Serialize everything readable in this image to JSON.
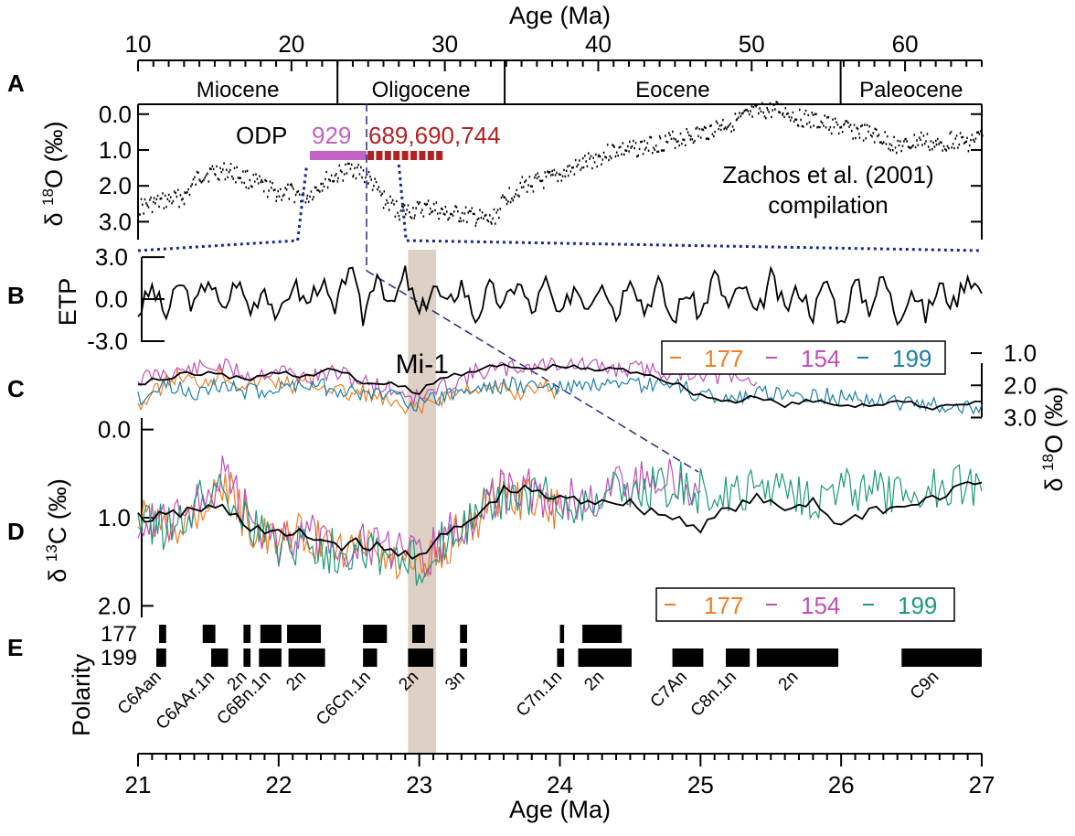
{
  "chart_data": [
    {
      "panel": "A",
      "type": "scatter",
      "top_axis": {
        "title": "Age (Ma)",
        "range": [
          10,
          65
        ],
        "ticks": [
          10,
          20,
          30,
          40,
          50,
          60
        ]
      },
      "ylabel_base": "δ",
      "ylabel_sup": "18",
      "ylabel_rest": "O (‰)",
      "y_range": [
        -0.3,
        3.5
      ],
      "y_inverted": true,
      "yticks": [
        "0.0",
        "1.0",
        "2.0",
        "3.0"
      ],
      "epochs": [
        {
          "name": "Miocene",
          "start": 10,
          "end": 23
        },
        {
          "name": "Oligocene",
          "start": 23,
          "end": 33.9
        },
        {
          "name": "Eocene",
          "start": 33.9,
          "end": 55.8
        },
        {
          "name": "Paleocene",
          "start": 55.8,
          "end": 65
        }
      ],
      "odp_label": "ODP",
      "site_label_929": "929",
      "site_label_south": "689,690,744",
      "site_colors": {
        "929": "#c262c2",
        "south": "#b22222"
      },
      "site_bar_929": [
        21.2,
        24.9
      ],
      "site_bar_south": [
        24.9,
        29.5
      ],
      "annotation_line1": "Zachos et al. (2001)",
      "annotation_line2": "compilation",
      "zoom_window": [
        21,
        27
      ],
      "series": [
        {
          "x": [
            10,
            11,
            12,
            13,
            14,
            15,
            16,
            17,
            18,
            19,
            20,
            21,
            22,
            23,
            24,
            25,
            26,
            27,
            28,
            29,
            30,
            31,
            32,
            33,
            34,
            35,
            36,
            37,
            38,
            39,
            40,
            41,
            42,
            43,
            44,
            45,
            46,
            47,
            48,
            49,
            50,
            51,
            52,
            53,
            54,
            55,
            56,
            57,
            58,
            59,
            60,
            61,
            62,
            63,
            64,
            65
          ],
          "y": [
            2.6,
            2.5,
            2.4,
            2.3,
            1.7,
            1.6,
            1.6,
            1.8,
            2.0,
            2.2,
            2.2,
            2.3,
            1.9,
            1.7,
            1.5,
            1.8,
            2.4,
            2.7,
            2.7,
            2.6,
            2.8,
            2.8,
            2.9,
            3.0,
            2.3,
            2.0,
            1.9,
            1.8,
            1.6,
            1.4,
            1.2,
            1.0,
            1.0,
            0.9,
            0.8,
            0.7,
            0.6,
            0.5,
            0.3,
            0.2,
            0.0,
            -0.1,
            -0.1,
            0.1,
            0.2,
            0.3,
            0.4,
            0.5,
            0.6,
            0.8,
            0.9,
            0.7,
            0.9,
            0.7,
            0.8,
            0.6
          ]
        }
      ]
    },
    {
      "panel": "B",
      "type": "line",
      "ylabel": "ETP",
      "y_range": [
        -3.2,
        3.2
      ],
      "yticks": [
        "3.0",
        "0.0",
        "-3.0"
      ],
      "x_range": [
        21,
        27
      ],
      "series": [
        {
          "x": [
            21.0,
            21.1,
            21.2,
            21.3,
            21.4,
            21.5,
            21.6,
            21.7,
            21.8,
            21.9,
            22.0,
            22.1,
            22.2,
            22.3,
            22.4,
            22.5,
            22.6,
            22.7,
            22.8,
            22.9,
            23.0,
            23.1,
            23.2,
            23.3,
            23.4,
            23.5,
            23.6,
            23.7,
            23.8,
            23.9,
            24.0,
            24.1,
            24.2,
            24.3,
            24.4,
            24.5,
            24.6,
            24.7,
            24.8,
            24.9,
            25.0,
            25.1,
            25.2,
            25.3,
            25.4,
            25.5,
            25.6,
            25.7,
            25.8,
            25.9,
            26.0,
            26.1,
            26.2,
            26.3,
            26.4,
            26.5,
            26.6,
            26.7,
            26.8,
            26.9,
            27.0
          ],
          "y": [
            -1.0,
            0.8,
            -1.2,
            1.2,
            -0.6,
            1.6,
            -1.0,
            1.4,
            -0.8,
            1.0,
            -1.6,
            1.2,
            -0.4,
            1.4,
            -1.2,
            2.6,
            -1.4,
            2.2,
            -0.8,
            1.8,
            -1.2,
            1.0,
            -0.6,
            1.2,
            -1.4,
            0.8,
            -0.6,
            1.4,
            -1.0,
            1.2,
            -1.6,
            1.0,
            -0.4,
            1.6,
            -1.2,
            2.0,
            -0.8,
            1.2,
            -1.6,
            0.6,
            -1.2,
            1.8,
            -0.6,
            1.0,
            -1.4,
            1.6,
            -0.8,
            0.8,
            -1.0,
            1.4,
            -1.8,
            1.2,
            -0.6,
            1.6,
            -1.4,
            0.8,
            -1.2,
            1.0,
            -0.4,
            1.8,
            0.4
          ]
        }
      ]
    },
    {
      "panel": "C",
      "type": "line",
      "ylabel_base": "δ",
      "ylabel_sup": "18",
      "ylabel_rest": "O (‰)",
      "y_range": [
        0.6,
        3.1
      ],
      "y_inverted": true,
      "yticks": [
        "1.0",
        "2.0",
        "3.0"
      ],
      "x_range": [
        21,
        27
      ],
      "event_label": "Mi-1",
      "event_band": [
        22.92,
        23.12
      ],
      "legend": [
        "177",
        "154",
        "199"
      ],
      "series": [
        {
          "name": "177",
          "color": "#f47c20",
          "x": [
            21.0,
            21.1,
            21.2,
            21.3,
            21.4,
            21.5,
            21.6,
            21.7,
            21.8,
            21.9,
            22.0,
            22.1,
            22.2,
            22.3,
            22.4,
            22.5,
            22.6,
            22.7,
            22.8,
            22.9,
            23.0,
            23.1,
            23.2,
            23.3,
            23.4,
            23.5,
            23.6,
            23.7,
            23.8,
            23.9,
            24.0
          ],
          "y": [
            2.6,
            2.3,
            1.9,
            1.7,
            1.9,
            1.8,
            1.6,
            1.9,
            2.0,
            1.8,
            1.9,
            2.0,
            1.9,
            2.0,
            2.1,
            2.3,
            2.2,
            2.4,
            2.6,
            2.8,
            2.7,
            2.5,
            2.3,
            2.2,
            2.0,
            2.2,
            2.1,
            2.3,
            2.0,
            2.1,
            2.2
          ]
        },
        {
          "name": "154",
          "color": "#c04fb8",
          "x": [
            21.0,
            21.2,
            21.4,
            21.6,
            21.8,
            22.0,
            22.2,
            22.4,
            22.6,
            22.8,
            23.0,
            23.2,
            23.4,
            23.6,
            23.8,
            24.0,
            24.2,
            24.4,
            24.6,
            24.8,
            25.0,
            25.2,
            25.4
          ],
          "y": [
            1.8,
            1.6,
            1.5,
            1.4,
            1.7,
            1.5,
            1.8,
            1.6,
            1.9,
            2.1,
            2.4,
            2.0,
            1.6,
            1.5,
            1.4,
            1.3,
            1.4,
            1.5,
            1.5,
            1.6,
            1.6,
            1.8,
            1.9
          ]
        },
        {
          "name": "199",
          "color": "#1a7fa8",
          "x": [
            21.0,
            21.2,
            21.4,
            21.6,
            21.8,
            22.0,
            22.2,
            22.4,
            22.6,
            22.8,
            23.0,
            23.2,
            23.4,
            23.6,
            23.8,
            24.0,
            24.2,
            24.4,
            24.6,
            24.8,
            25.0,
            25.2,
            25.4,
            25.6,
            25.8,
            26.0,
            26.2,
            26.4,
            26.6,
            26.8,
            27.0
          ],
          "y": [
            2.4,
            2.0,
            2.2,
            2.0,
            2.2,
            2.1,
            1.9,
            2.1,
            2.3,
            2.2,
            2.6,
            2.3,
            2.1,
            2.0,
            2.0,
            2.1,
            2.0,
            2.1,
            2.0,
            2.0,
            2.3,
            2.4,
            2.3,
            2.2,
            2.3,
            2.4,
            2.4,
            2.5,
            2.6,
            2.7,
            2.6
          ]
        },
        {
          "name": "",
          "color": "#000000",
          "x": [
            21.0,
            21.2,
            21.4,
            21.6,
            21.8,
            22.0,
            22.2,
            22.4,
            22.6,
            22.8,
            23.0,
            23.2,
            23.4,
            23.6,
            23.8,
            24.0,
            24.2,
            24.4,
            24.6,
            24.8,
            25.0,
            25.2,
            25.4,
            25.6,
            25.8,
            26.0,
            26.2,
            26.4,
            26.6,
            26.8,
            27.0
          ],
          "y": [
            1.9,
            1.8,
            1.6,
            1.7,
            1.8,
            1.6,
            1.7,
            1.5,
            1.9,
            2.0,
            2.2,
            1.7,
            1.5,
            1.4,
            1.5,
            1.4,
            1.5,
            1.5,
            1.6,
            1.9,
            2.3,
            2.5,
            2.4,
            2.6,
            2.5,
            2.6,
            2.6,
            2.5,
            2.7,
            2.6,
            2.5
          ]
        }
      ]
    },
    {
      "panel": "D",
      "type": "line",
      "ylabel_base": "δ",
      "ylabel_sup": "13",
      "ylabel_rest": "C (‰)",
      "y_range": [
        -0.1,
        2.1
      ],
      "y_inverted": true,
      "yticks": [
        "0.0",
        "1.0",
        "2.0"
      ],
      "x_range": [
        21,
        27
      ],
      "legend": [
        "177",
        "154",
        "199"
      ],
      "series": [
        {
          "name": "177",
          "color": "#f47c20",
          "x": [
            21.0,
            21.2,
            21.4,
            21.6,
            21.8,
            22.0,
            22.2,
            22.4,
            22.6,
            22.8,
            23.0,
            23.2,
            23.4,
            23.6,
            23.8,
            24.0
          ],
          "y": [
            1.0,
            1.1,
            0.9,
            0.6,
            1.1,
            1.3,
            1.2,
            1.4,
            1.3,
            1.5,
            1.6,
            1.3,
            1.0,
            0.7,
            0.8,
            0.9
          ]
        },
        {
          "name": "154",
          "color": "#c04fb8",
          "x": [
            21.0,
            21.2,
            21.4,
            21.6,
            21.8,
            22.0,
            22.2,
            22.4,
            22.6,
            22.8,
            23.0,
            23.2,
            23.4,
            23.6,
            23.8,
            24.0,
            24.2,
            24.4,
            24.6,
            24.8,
            25.0
          ],
          "y": [
            1.0,
            1.0,
            0.9,
            0.5,
            1.0,
            1.3,
            1.2,
            1.3,
            1.3,
            1.4,
            1.5,
            1.2,
            1.0,
            0.7,
            0.7,
            0.8,
            0.8,
            0.7,
            0.6,
            0.6,
            0.7
          ]
        },
        {
          "name": "199",
          "color": "#1c9a7a",
          "x": [
            21.0,
            21.2,
            21.4,
            21.6,
            21.8,
            22.0,
            22.2,
            22.4,
            22.6,
            22.8,
            23.0,
            23.2,
            23.4,
            23.6,
            23.8,
            24.0,
            24.2,
            24.4,
            24.6,
            24.8,
            25.0,
            25.2,
            25.4,
            25.6,
            25.8,
            26.0,
            26.2,
            26.4,
            26.6,
            26.8,
            27.0
          ],
          "y": [
            1.0,
            1.1,
            0.9,
            0.6,
            1.1,
            1.3,
            1.3,
            1.4,
            1.3,
            1.5,
            1.5,
            1.2,
            1.0,
            0.8,
            0.7,
            0.9,
            0.8,
            0.7,
            0.7,
            0.6,
            0.7,
            0.8,
            0.7,
            0.6,
            0.8,
            0.7,
            0.7,
            0.8,
            0.7,
            0.6,
            0.7
          ]
        },
        {
          "name": "",
          "color": "#000000",
          "x": [
            21.0,
            21.2,
            21.4,
            21.6,
            21.8,
            22.0,
            22.2,
            22.4,
            22.6,
            22.8,
            23.0,
            23.2,
            23.4,
            23.6,
            23.8,
            24.0,
            24.2,
            24.4,
            24.6,
            24.8,
            25.0,
            25.2,
            25.4,
            25.6,
            25.8,
            26.0,
            26.2,
            26.4,
            26.6,
            26.8,
            27.0
          ],
          "y": [
            1.0,
            1.0,
            0.9,
            0.9,
            1.1,
            1.2,
            1.2,
            1.3,
            1.3,
            1.4,
            1.4,
            1.2,
            1.0,
            0.7,
            0.7,
            0.8,
            0.8,
            0.8,
            0.9,
            1.0,
            1.1,
            0.9,
            0.8,
            0.9,
            0.8,
            1.1,
            0.9,
            0.9,
            0.8,
            0.7,
            0.6
          ]
        }
      ]
    },
    {
      "panel": "E",
      "type": "bar",
      "ylabel": "Polarity",
      "x_range": [
        21,
        27
      ],
      "sites": [
        "177",
        "199"
      ],
      "normal_intervals": {
        "177": [
          [
            21.15,
            21.2
          ],
          [
            21.46,
            21.55
          ],
          [
            21.75,
            21.8
          ],
          [
            21.87,
            22.02
          ],
          [
            22.06,
            22.3
          ],
          [
            22.6,
            22.77
          ],
          [
            22.95,
            23.04
          ],
          [
            23.29,
            23.34
          ],
          [
            24.0,
            24.03
          ],
          [
            24.16,
            24.44
          ]
        ],
        "199": [
          [
            21.13,
            21.2
          ],
          [
            21.52,
            21.64
          ],
          [
            21.75,
            21.8
          ],
          [
            21.86,
            22.02
          ],
          [
            22.07,
            22.33
          ],
          [
            22.6,
            22.7
          ],
          [
            22.92,
            23.1
          ],
          [
            23.29,
            23.34
          ],
          [
            23.98,
            24.03
          ],
          [
            24.13,
            24.51
          ],
          [
            24.8,
            25.02
          ],
          [
            25.18,
            25.35
          ],
          [
            25.4,
            25.98
          ],
          [
            26.43,
            27.0
          ]
        ]
      },
      "chron_labels": [
        {
          "text": "C6Aan",
          "x": 21.17
        },
        {
          "text": "C6AAr.1n",
          "x": 21.55
        },
        {
          "text": "2n",
          "x": 21.78
        },
        {
          "text": "C6Bn.1n",
          "x": 21.95
        },
        {
          "text": "2n",
          "x": 22.2
        },
        {
          "text": "C6Cn.1n",
          "x": 22.66
        },
        {
          "text": "2n",
          "x": 23.0
        },
        {
          "text": "3n",
          "x": 23.33
        },
        {
          "text": "C7n.1n",
          "x": 24.02
        },
        {
          "text": "2n",
          "x": 24.32
        },
        {
          "text": "C7An",
          "x": 24.91
        },
        {
          "text": "C8n.1n",
          "x": 25.26
        },
        {
          "text": "2n",
          "x": 25.7
        },
        {
          "text": "C9n",
          "x": 26.7
        }
      ],
      "bottom_axis": {
        "title": "Age (Ma)",
        "range": [
          21,
          27
        ],
        "ticks": [
          21,
          22,
          23,
          24,
          25,
          26,
          27
        ]
      }
    }
  ]
}
